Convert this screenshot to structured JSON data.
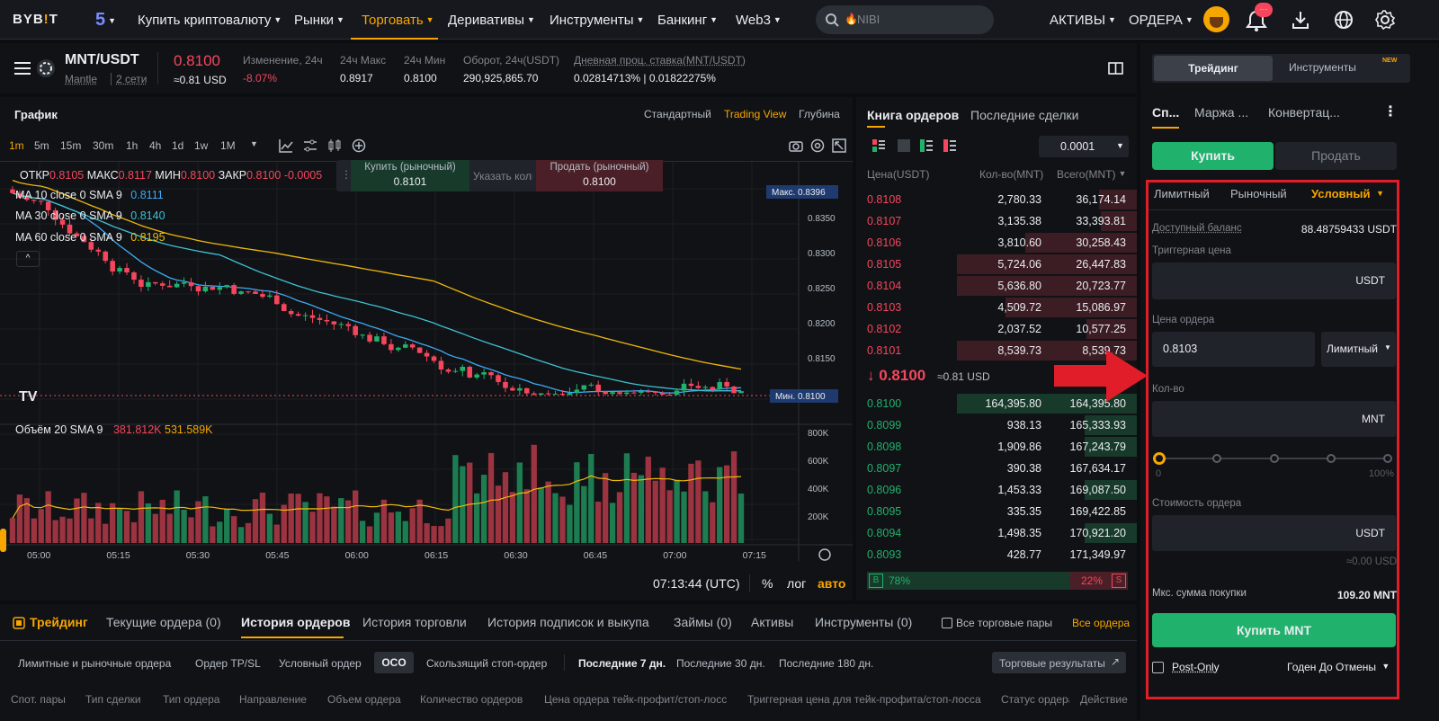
{
  "brand": {
    "logo_pre": "BYB",
    "logo_mid": "!",
    "logo_post": "T"
  },
  "nav": {
    "items": [
      "Купить криптовалюту",
      "Рынки",
      "Торговать",
      "Деривативы",
      "Инструменты",
      "Банкинг",
      "Web3"
    ],
    "search_placeholder": "NIBI",
    "assets": "АКТИВЫ",
    "orders": "ОРДЕРА"
  },
  "ticker": {
    "pair": "MNT/USDT",
    "chain": "Mantle",
    "networks": "2 сети",
    "price": "0.8100",
    "price_usd": "≈0.81 USD",
    "change_label": "Изменение, 24ч",
    "change_value": "-8.07%",
    "high_label": "24ч Макс",
    "high_value": "0.8917",
    "low_label": "24ч Мин",
    "low_value": "0.8100",
    "turnover_label": "Оборот, 24ч(USDT)",
    "turnover_value": "290,925,865.70",
    "rate_label": "Дневная проц. ставка(MNT/USDT)",
    "rate_value": "0.02814713% | 0.01822275%"
  },
  "chart": {
    "title": "График",
    "views": [
      "Стандартный",
      "Trading View",
      "Глубина"
    ],
    "intervals": [
      "1m",
      "5m",
      "15m",
      "30m",
      "1h",
      "4h",
      "1d",
      "1w",
      "1M"
    ],
    "ohlc": {
      "o_label": "ОТКР",
      "o": "0.8105",
      "h_label": "МАКС",
      "h": "0.8117",
      "l_label": "МИН",
      "l": "0.8100",
      "c_label": "ЗАКР",
      "c": "0.8100",
      "chg": "-0.0005"
    },
    "buy_market": "Купить (рыночный)",
    "buy_market_price": "0.8101",
    "qty_placeholder": "Указать коли",
    "sell_market": "Продать (рыночный)",
    "sell_market_price": "0.8100",
    "ma10": "MA 10 close 0 SMA 9",
    "ma10_val": "0.8111",
    "ma30": "MA 30 close 0 SMA 9",
    "ma30_val": "0.8140",
    "ma60": "MA 60 close 0 SMA 9",
    "ma60_val": "0.8195",
    "max_label": "Макс.",
    "max_value": "0.8396",
    "min_label": "Мин.",
    "min_value": "0.8100",
    "volume_label": "Объём 20 SMA 9",
    "volume_v1": "381.812K",
    "volume_v2": "531.589K",
    "price_ticks": [
      "0.8350",
      "0.8300",
      "0.8250",
      "0.8200",
      "0.8150"
    ],
    "vol_ticks": [
      "800K",
      "600K",
      "400K",
      "200K"
    ],
    "time_ticks": [
      "05:00",
      "05:15",
      "05:30",
      "05:45",
      "06:00",
      "06:15",
      "06:30",
      "06:45",
      "07:00",
      "07:15"
    ],
    "clock": "07:13:44 (UTC)",
    "pct": "%",
    "log": "лог",
    "auto": "авто"
  },
  "chart_data": {
    "type": "candlestick",
    "x_range": [
      "04:53",
      "07:15"
    ],
    "price_range": [
      0.81,
      0.8396
    ],
    "ma10_last": 0.8111,
    "ma30_last": 0.814,
    "ma60_last": 0.8195,
    "volume_ma_last": 381812
  },
  "orderbook": {
    "tab_book": "Книга ордеров",
    "tab_trades": "Последние сделки",
    "precision": "0.0001",
    "col_price": "Цена(USDT)",
    "col_qty": "Кол-во(MNT)",
    "col_total": "Всего(MNT)",
    "asks": [
      {
        "price": "0.8108",
        "qty": "2,780.33",
        "total": "36,174.14",
        "depth": 0.21
      },
      {
        "price": "0.8107",
        "qty": "3,135.38",
        "total": "33,393.81",
        "depth": 0.2
      },
      {
        "price": "0.8106",
        "qty": "3,810.60",
        "total": "30,258.43",
        "depth": 0.62
      },
      {
        "price": "0.8105",
        "qty": "5,724.06",
        "total": "26,447.83",
        "depth": 1.0
      },
      {
        "price": "0.8104",
        "qty": "5,636.80",
        "total": "20,723.77",
        "depth": 1.0
      },
      {
        "price": "0.8103",
        "qty": "4,509.72",
        "total": "15,086.97",
        "depth": 0.73
      },
      {
        "price": "0.8102",
        "qty": "2,037.52",
        "total": "10,577.25",
        "depth": 0.28
      },
      {
        "price": "0.8101",
        "qty": "8,539.73",
        "total": "8,539.73",
        "depth": 1.0
      }
    ],
    "last_price": "0.8100",
    "last_usd": "≈0.81 USD",
    "bids": [
      {
        "price": "0.8100",
        "qty": "164,395.80",
        "total": "164,395.80",
        "depth": 1.0
      },
      {
        "price": "0.8099",
        "qty": "938.13",
        "total": "165,333.93",
        "depth": 0.29
      },
      {
        "price": "0.8098",
        "qty": "1,909.86",
        "total": "167,243.79",
        "depth": 0.29
      },
      {
        "price": "0.8097",
        "qty": "390.38",
        "total": "167,634.17",
        "depth": 0.0
      },
      {
        "price": "0.8096",
        "qty": "1,453.33",
        "total": "169,087.50",
        "depth": 0.29
      },
      {
        "price": "0.8095",
        "qty": "335.35",
        "total": "169,422.85",
        "depth": 0.0
      },
      {
        "price": "0.8094",
        "qty": "1,498.35",
        "total": "170,921.20",
        "depth": 0.29
      },
      {
        "price": "0.8093",
        "qty": "428.77",
        "total": "171,349.97",
        "depth": 0.0
      }
    ],
    "buy_letter": "B",
    "buy_pct": "78%",
    "sell_pct": "22%",
    "sell_letter": "S",
    "buy_ratio": 0.78
  },
  "trade": {
    "tab_trading": "Трейдинг",
    "tab_tools": "Инструменты",
    "new_badge": "NEW",
    "mode_spot": "Сп...",
    "mode_margin": "Маржа ...",
    "mode_convert": "Конвертац...",
    "buy": "Купить",
    "sell": "Продать",
    "type_limit": "Лимитный",
    "type_market": "Рыночный",
    "type_cond": "Условный",
    "avail_label": "Доступный баланс",
    "avail_value": "88.48759433 USDT",
    "trigger_label": "Триггерная цена",
    "trigger_unit": "USDT",
    "order_price_label": "Цена ордера",
    "order_price_value": "0.8103",
    "order_price_type": "Лимитный",
    "qty_label": "Кол-во",
    "qty_unit": "MNT",
    "slider_min": "0",
    "slider_max": "100%",
    "slider_value": 0,
    "cost_label": "Стоимость ордера",
    "cost_unit": "USDT",
    "cost_usd": "≈0.00 USD",
    "max_label": "Мкс. сумма покупки",
    "max_value": "109.20 MNT",
    "submit": "Купить MNT",
    "post_only": "Post-Only",
    "tif": "Годен До Отмены"
  },
  "bottom": {
    "tabs": [
      "Трейдинг",
      "Текущие ордера (0)",
      "История ордеров",
      "История торговли",
      "История подписок и выкупа",
      "Займы (0)",
      "Активы",
      "Инструменты (0)"
    ],
    "all_pairs": "Все торговые пары",
    "all_orders": "Все ордера",
    "filters": [
      "Лимитные и рыночные ордера",
      "Ордер TP/SL",
      "Условный ордер",
      "OCO",
      "Скользящий стоп-ордер"
    ],
    "periods": [
      "Последние 7 дн.",
      "Последние 30 дн.",
      "Последние 180 дн."
    ],
    "results": "Торговые результаты",
    "columns": [
      "Спот. пары",
      "Тип сделки",
      "Тип ордера",
      "Направление",
      "Объем ордера",
      "Количество ордеров",
      "Цена ордера тейк-профит/стоп-лосс",
      "Триггерная цена для тейк-профита/стоп-лосса",
      "Статус ордера",
      "Действие"
    ]
  }
}
